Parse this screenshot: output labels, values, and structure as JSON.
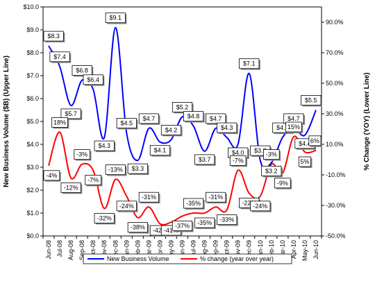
{
  "chart_data": {
    "type": "line",
    "categories": [
      "Jun-08",
      "Jul-08",
      "Aug-08",
      "Sep-08",
      "Oct-08",
      "Nov-08",
      "Dec-08",
      "Jan-09",
      "Feb-09",
      "Mar-09",
      "Apr-09",
      "May-09",
      "Jun-09",
      "Jul-09",
      "Aug-09",
      "Sep-09",
      "Oct-09",
      "Nov-09",
      "Dec-09",
      "Jan-10",
      "Feb-10",
      "Mar-10",
      "Apr-10",
      "May-10",
      "Jun-10"
    ],
    "series": [
      {
        "name": "New Business Volume",
        "axis": "left",
        "color": "#0000ff",
        "values": [
          8.3,
          7.4,
          5.7,
          6.8,
          6.4,
          4.3,
          9.1,
          4.5,
          3.3,
          4.7,
          4.1,
          4.2,
          5.2,
          4.8,
          3.7,
          4.7,
          4.3,
          4.0,
          7.1,
          3.3,
          3.2,
          4.3,
          4.7,
          4.4,
          5.5
        ],
        "labels": [
          "$8.3",
          "$7.4",
          "$5.7",
          "$6.8",
          "$6.4",
          "$4.3",
          "$9.1",
          "$4.5",
          "$3.3",
          "$4.7",
          "$4.1",
          "$4.2",
          "$5.2",
          "$4.8",
          "$3.7",
          "$4.7",
          "$4.3",
          "$4.0",
          "$7.1",
          "$3.3",
          "$3.2",
          "$4.3",
          "$4.7",
          "$4.4",
          "$5.5"
        ]
      },
      {
        "name": "% change (year over year)",
        "axis": "right",
        "color": "#ff0000",
        "values": [
          -4,
          18,
          -12,
          -3,
          -7,
          -32,
          -13,
          -24,
          -38,
          -31,
          -42,
          -41,
          -37,
          -35,
          -35,
          -31,
          -33,
          -7,
          -22,
          -24,
          -3,
          -9,
          15,
          5,
          6
        ],
        "labels": [
          "-4%",
          "18%",
          "-12%",
          "-3%",
          "-7%",
          "-32%",
          "-13%",
          "-24%",
          "-38%",
          "-31%",
          "-42%",
          "-41%",
          "-37%",
          "-35%",
          "-35%",
          "-31%",
          "-33%",
          "-7%",
          "-22%",
          "-24%",
          "-3%",
          "-9%",
          "15%",
          "5%",
          "6%"
        ]
      }
    ],
    "y_left": {
      "label": "New Business Volume ($B) (Upper Line)",
      "ylim": [
        0,
        10
      ],
      "ticks": [
        "$0.0",
        "$1.0",
        "$2.0",
        "$3.0",
        "$4.0",
        "$5.0",
        "$6.0",
        "$7.0",
        "$8.0",
        "$9.0",
        "$10.0"
      ]
    },
    "y_right": {
      "label": "% Change (YOY) (Lower Line)",
      "ylim": [
        -50,
        100
      ],
      "ticks": [
        "-50.0%",
        "-30.0%",
        "-10.0%",
        "10.0%",
        "30.0%",
        "50.0%",
        "70.0%",
        "90.0%"
      ]
    },
    "legend": {
      "placement": "bottom",
      "entries": [
        "New Business Volume",
        "% change (year over year)"
      ]
    },
    "grid": false
  }
}
